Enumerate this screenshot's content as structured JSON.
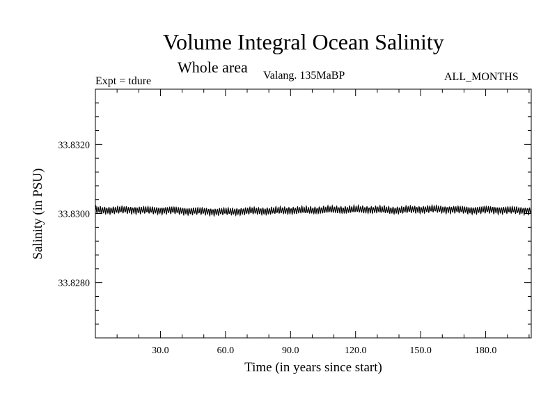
{
  "chart_data": {
    "type": "line",
    "title": "Volume Integral Ocean Salinity",
    "subtitle": "Whole area",
    "annotations": {
      "experiment": "Expt = tdure",
      "period": "Valang.  135MaBP",
      "months": "ALL_MONTHS"
    },
    "xlabel": "Time (in years since start)",
    "ylabel": "Salinity (in PSU)",
    "xlim": [
      0,
      201
    ],
    "ylim": [
      33.8264,
      33.8336
    ],
    "xticks": [
      {
        "value": 30,
        "label": "30.0"
      },
      {
        "value": 60,
        "label": "60.0"
      },
      {
        "value": 90,
        "label": "90.0"
      },
      {
        "value": 120,
        "label": "120.0"
      },
      {
        "value": 150,
        "label": "150.0"
      },
      {
        "value": 180,
        "label": "180.0"
      }
    ],
    "yticks": [
      {
        "value": 33.828,
        "label": "33.8280"
      },
      {
        "value": 33.83,
        "label": "33.8300"
      },
      {
        "value": 33.832,
        "label": "33.8320"
      }
    ],
    "x_minor_step": 10,
    "y_minor_step": 0.0004,
    "grid": false,
    "series": [
      {
        "color": "#000000",
        "mean": 33.8301,
        "seasonal_amplitude": 0.00012,
        "samples_per_year": 12,
        "x": [
          0,
          20,
          40,
          55,
          80,
          100,
          120,
          140,
          155,
          170,
          190,
          201
        ],
        "values": [
          33.8301,
          33.8301,
          33.83008,
          33.83005,
          33.83008,
          33.8301,
          33.83012,
          33.8301,
          33.83013,
          33.8301,
          33.8301,
          33.83008
        ]
      }
    ]
  }
}
